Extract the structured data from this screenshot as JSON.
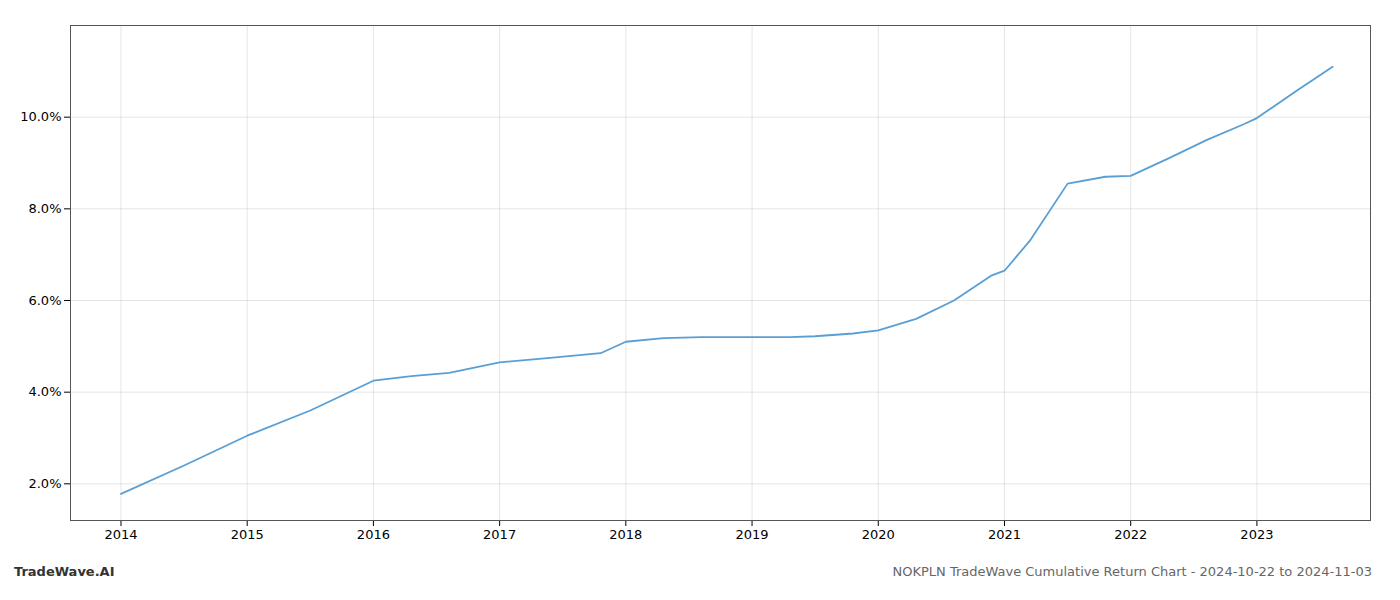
{
  "chart_data": {
    "type": "line",
    "title": "NOKPLN TradeWave Cumulative Return Chart - 2024-10-22 to 2024-11-03",
    "annotations": [
      "TradeWave.AI"
    ],
    "x": [
      2014.0,
      2014.5,
      2015.0,
      2015.5,
      2016.0,
      2016.3,
      2016.6,
      2017.0,
      2017.4,
      2017.8,
      2018.0,
      2018.3,
      2018.6,
      2019.0,
      2019.3,
      2019.5,
      2019.8,
      2020.0,
      2020.3,
      2020.6,
      2020.9,
      2021.0,
      2021.2,
      2021.5,
      2021.8,
      2022.0,
      2022.3,
      2022.6,
      2022.9,
      2023.0,
      2023.3,
      2023.6
    ],
    "values": [
      1.78,
      2.4,
      3.05,
      3.6,
      4.25,
      4.35,
      4.42,
      4.65,
      4.75,
      4.85,
      5.1,
      5.18,
      5.2,
      5.2,
      5.2,
      5.22,
      5.28,
      5.35,
      5.6,
      6.0,
      6.55,
      6.65,
      7.3,
      8.55,
      8.7,
      8.72,
      9.1,
      9.5,
      9.85,
      9.98,
      10.55,
      11.1
    ],
    "color": "#5a9fd4",
    "xlim": [
      2013.6,
      2023.9
    ],
    "ylim": [
      1.2,
      12.0
    ],
    "xticks": [
      2014,
      2015,
      2016,
      2017,
      2018,
      2019,
      2020,
      2021,
      2022,
      2023
    ],
    "yticks": [
      {
        "value": 2.0,
        "label": "2.0%"
      },
      {
        "value": 4.0,
        "label": "4.0%"
      },
      {
        "value": 6.0,
        "label": "6.0%"
      },
      {
        "value": 8.0,
        "label": "8.0%"
      },
      {
        "value": 10.0,
        "label": "10.0%"
      }
    ],
    "grid": true
  }
}
